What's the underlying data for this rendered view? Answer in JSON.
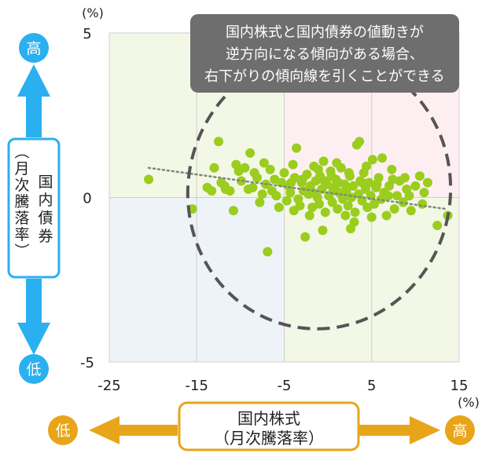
{
  "colors": {
    "plot_background_quadrant_top_left": "#f3f7e6",
    "plot_background_quadrant_top_right": "#fdeff1",
    "plot_background_quadrant_bottom_left": "#eef3f8",
    "plot_background_quadrant_bottom_right": "#f3f7e6",
    "point": "#9acd1e",
    "trend_line": "#7a8a7a",
    "ellipse": "#555555",
    "annotation_box": "#6e6e6e",
    "vertical_arrow": "#2ab0f0",
    "horizontal_arrow": "#e8a51a",
    "badge_text": "#ffffff",
    "grid": "#cfcfcf"
  },
  "annotation": {
    "line1": "国内株式と国内債券の値動きが",
    "line2": "逆方向になる傾向がある場合、",
    "line3": "右下がりの傾向線を引くことができる"
  },
  "y_axis_indicator": {
    "high_label": "高",
    "low_label": "低",
    "title_line1": "国内債券",
    "title_line2": "（月次騰落率）"
  },
  "x_axis_indicator": {
    "high_label": "高",
    "low_label": "低",
    "title_line1": "国内株式",
    "title_line2": "（月次騰落率）"
  },
  "chart_data": {
    "type": "scatter",
    "title": "",
    "x_unit": "(%)",
    "y_unit": "(%)",
    "xlim": [
      -25,
      15
    ],
    "ylim": [
      -5,
      5
    ],
    "x_ticks": [
      "-25",
      "-15",
      "-5",
      "5",
      "15"
    ],
    "y_ticks": [
      "5",
      "0",
      "-5"
    ],
    "x_tick_values": [
      -25,
      -15,
      -5,
      5,
      15
    ],
    "y_tick_values": [
      5,
      0,
      -5
    ],
    "quadrant_split": {
      "x": -5,
      "y": 0
    },
    "grid": true,
    "trend_line": {
      "x": [
        -20.5,
        13.5
      ],
      "y": [
        0.9,
        -0.35
      ]
    },
    "ellipse": {
      "cx": -1,
      "cy": 0.2,
      "rx": 15,
      "ry": 4.2,
      "angle_deg": 10
    },
    "points": [
      [
        -20.5,
        0.55
      ],
      [
        -15.5,
        -0.35
      ],
      [
        -13.8,
        0.3
      ],
      [
        -13.3,
        0.2
      ],
      [
        -13.0,
        0.9
      ],
      [
        -12.5,
        1.7
      ],
      [
        -12.2,
        0.45
      ],
      [
        -11.8,
        0.35
      ],
      [
        -11.2,
        0.2
      ],
      [
        -10.8,
        -0.4
      ],
      [
        -10.5,
        1.0
      ],
      [
        -10.2,
        0.8
      ],
      [
        -9.9,
        0.5
      ],
      [
        -9.5,
        0.9
      ],
      [
        -9.1,
        0.25
      ],
      [
        -8.9,
        1.35
      ],
      [
        -8.6,
        0.3
      ],
      [
        -8.4,
        0.75
      ],
      [
        -8.1,
        0.6
      ],
      [
        -7.8,
        -0.15
      ],
      [
        -7.5,
        0.1
      ],
      [
        -7.3,
        1.05
      ],
      [
        -7.1,
        0.4
      ],
      [
        -6.9,
        -1.65
      ],
      [
        -6.6,
        0.85
      ],
      [
        -6.4,
        0.2
      ],
      [
        -6.1,
        0.55
      ],
      [
        -5.9,
        0.05
      ],
      [
        -5.6,
        -0.3
      ],
      [
        -5.3,
        0.45
      ],
      [
        -5.0,
        0.75
      ],
      [
        -4.7,
        -0.1
      ],
      [
        -4.5,
        0.35
      ],
      [
        -4.3,
        0.15
      ],
      [
        -4.0,
        1.0
      ],
      [
        -3.8,
        0.6
      ],
      [
        -3.6,
        1.5
      ],
      [
        -3.4,
        -0.05
      ],
      [
        -3.2,
        -0.25
      ],
      [
        -3.0,
        0.45
      ],
      [
        -2.8,
        0.2
      ],
      [
        -2.6,
        -1.2
      ],
      [
        -2.4,
        0.7
      ],
      [
        -2.2,
        0.1
      ],
      [
        -2.0,
        0.35
      ],
      [
        -1.8,
        -0.3
      ],
      [
        -1.6,
        0.95
      ],
      [
        -1.4,
        0.5
      ],
      [
        -1.2,
        0.0
      ],
      [
        -1.0,
        -0.2
      ],
      [
        -0.9,
        0.65
      ],
      [
        -0.7,
        0.25
      ],
      [
        -0.5,
        1.1
      ],
      [
        -0.3,
        -0.45
      ],
      [
        -0.1,
        0.4
      ],
      [
        0.1,
        0.05
      ],
      [
        0.3,
        0.8
      ],
      [
        0.5,
        -0.15
      ],
      [
        0.7,
        0.3
      ],
      [
        0.9,
        0.55
      ],
      [
        1.1,
        -0.35
      ],
      [
        1.3,
        0.15
      ],
      [
        1.5,
        0.9
      ],
      [
        1.7,
        -0.05
      ],
      [
        1.9,
        0.4
      ],
      [
        2.1,
        0.2
      ],
      [
        2.3,
        -0.25
      ],
      [
        2.5,
        0.65
      ],
      [
        2.7,
        0.0
      ],
      [
        2.9,
        0.35
      ],
      [
        3.1,
        -0.45
      ],
      [
        3.3,
        1.6
      ],
      [
        3.5,
        0.1
      ],
      [
        3.7,
        0.5
      ],
      [
        3.9,
        -0.1
      ],
      [
        4.1,
        0.75
      ],
      [
        4.3,
        0.25
      ],
      [
        4.5,
        -0.3
      ],
      [
        4.7,
        0.45
      ],
      [
        4.9,
        0.05
      ],
      [
        5.1,
        1.15
      ],
      [
        5.3,
        -0.2
      ],
      [
        5.5,
        0.3
      ],
      [
        5.8,
        0.6
      ],
      [
        6.1,
        -0.05
      ],
      [
        6.4,
        0.15
      ],
      [
        6.7,
        -0.55
      ],
      [
        7.0,
        0.35
      ],
      [
        7.3,
        0.85
      ],
      [
        7.6,
        -0.35
      ],
      [
        7.9,
        0.05
      ],
      [
        8.2,
        0.5
      ],
      [
        8.6,
        -0.15
      ],
      [
        9.0,
        0.25
      ],
      [
        9.5,
        -0.4
      ],
      [
        10.0,
        0.35
      ],
      [
        10.5,
        0.65
      ],
      [
        11.0,
        0.15
      ],
      [
        12.5,
        -0.85
      ],
      [
        13.7,
        -0.55
      ],
      [
        -11.7,
        0.25
      ],
      [
        -0.6,
        -1.0
      ],
      [
        2.6,
        -0.95
      ],
      [
        3.6,
        1.7
      ],
      [
        6.2,
        1.2
      ],
      [
        -4.2,
        0.45
      ],
      [
        -2.9,
        0.55
      ],
      [
        -1.7,
        0.15
      ],
      [
        0.4,
        0.65
      ],
      [
        1.2,
        0.45
      ],
      [
        2.0,
        -0.55
      ],
      [
        3.9,
        0.45
      ],
      [
        5.6,
        0.4
      ],
      [
        6.9,
        0.05
      ],
      [
        8.8,
        0.6
      ],
      [
        -0.4,
        0.5
      ],
      [
        0.6,
        0.2
      ],
      [
        1.6,
        0.1
      ],
      [
        2.4,
        0.75
      ],
      [
        4.4,
        0.95
      ],
      [
        -3.9,
        -0.4
      ],
      [
        -2.1,
        -0.55
      ],
      [
        -1.1,
        0.85
      ],
      [
        1.0,
        1.05
      ],
      [
        3.0,
        -0.75
      ],
      [
        5.0,
        -0.6
      ],
      [
        7.4,
        0.55
      ],
      [
        9.3,
        0.05
      ],
      [
        10.8,
        -0.2
      ],
      [
        11.4,
        0.45
      ]
    ]
  }
}
